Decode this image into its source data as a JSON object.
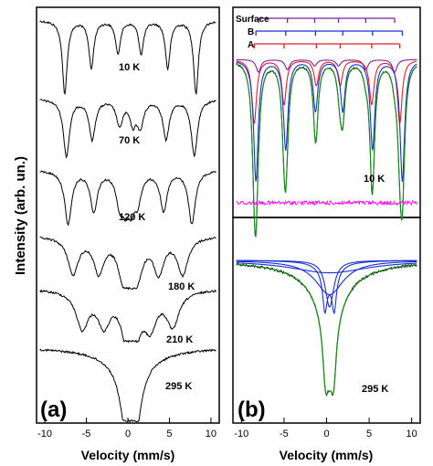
{
  "figure": {
    "ylabel": "Intensity (arb. un.)",
    "xlabel_a": "Velocity (mm/s)",
    "xlabel_b": "Velocity (mm/s)"
  },
  "chart_data": [
    {
      "panel": "(a)",
      "type": "line",
      "xlabel": "Velocity (mm/s)",
      "ylabel": "Intensity (arb. un.)",
      "xlim": [
        -11,
        11
      ],
      "xticks": [
        -10,
        -5,
        0,
        5,
        10
      ],
      "xtick_labels": [
        "-10",
        "-5",
        "0",
        "5",
        "10"
      ],
      "series": [
        {
          "name": "10 K",
          "lines": [
            [
              -7.6,
              1.0
            ],
            [
              -4.4,
              0.65
            ],
            [
              -1.2,
              0.45
            ],
            [
              1.6,
              0.45
            ],
            [
              4.8,
              0.65
            ],
            [
              8.2,
              1.0
            ]
          ]
        },
        {
          "name": "70 K",
          "lines": [
            [
              -7.4,
              1.0
            ],
            [
              -4.3,
              0.7
            ],
            [
              -1.0,
              0.45
            ],
            [
              0.6,
              0.4
            ],
            [
              1.5,
              0.45
            ],
            [
              4.6,
              0.7
            ],
            [
              8.0,
              1.0
            ]
          ]
        },
        {
          "name": "120 K",
          "lines": [
            [
              -7.2,
              1.0
            ],
            [
              -4.1,
              0.75
            ],
            [
              -1.0,
              0.55
            ],
            [
              -0.3,
              0.5
            ],
            [
              0.4,
              0.55
            ],
            [
              1.2,
              0.5
            ],
            [
              4.3,
              0.75
            ],
            [
              7.7,
              1.0
            ]
          ]
        },
        {
          "name": "180 K",
          "lines": [
            [
              -6.6,
              0.8
            ],
            [
              -3.5,
              0.75
            ],
            [
              -0.6,
              0.65
            ],
            [
              0.3,
              0.7
            ],
            [
              1.2,
              0.6
            ],
            [
              3.7,
              0.75
            ],
            [
              6.6,
              0.8
            ]
          ]
        },
        {
          "name": "210 K",
          "lines": [
            [
              -5.5,
              0.8
            ],
            [
              -2.9,
              0.7
            ],
            [
              0.0,
              0.85
            ],
            [
              0.7,
              0.85
            ],
            [
              2.7,
              0.7
            ],
            [
              5.4,
              0.75
            ]
          ]
        },
        {
          "name": "295 K",
          "lines": [
            [
              0.0,
              1.0
            ],
            [
              0.7,
              1.0
            ]
          ]
        }
      ],
      "annotations": [
        "10 K",
        "70 K",
        "120 K",
        "180 K",
        "210 K",
        "295 K",
        "(a)"
      ]
    },
    {
      "panel": "(b)",
      "type": "line",
      "xlabel": "Velocity (mm/s)",
      "xlim": [
        -11,
        11
      ],
      "xticks": [
        -10,
        -5,
        0,
        5,
        10
      ],
      "xtick_labels": [
        "-10",
        "-5",
        "0",
        "5",
        "10"
      ],
      "subplots": [
        {
          "temperature": "10 K",
          "stick_legend": [
            "Surface",
            "B",
            "A"
          ],
          "stick_colors": [
            "#7a1fa0",
            "#1a2fd0",
            "#e02020"
          ],
          "sticks": {
            "Surface": [
              -8.0,
              -4.6,
              -1.4,
              1.4,
              4.6,
              8.0
            ],
            "B": [
              -8.3,
              -4.8,
              -1.3,
              1.9,
              5.4,
              8.9
            ],
            "A": [
              -8.5,
              -5.0,
              -1.2,
              1.6,
              5.3,
              8.6
            ]
          },
          "components": [
            {
              "name": "B",
              "color": "#1a2fd0",
              "lines": [
                [
                  -8.3,
                  0.95
                ],
                [
                  -4.8,
                  0.7
                ],
                [
                  -1.3,
                  0.4
                ],
                [
                  1.9,
                  0.4
                ],
                [
                  5.4,
                  0.7
                ],
                [
                  8.9,
                  0.95
                ]
              ]
            },
            {
              "name": "A",
              "color": "#e02020",
              "lines": [
                [
                  -8.5,
                  0.5
                ],
                [
                  -5.0,
                  0.35
                ],
                [
                  -1.2,
                  0.2
                ],
                [
                  1.6,
                  0.2
                ],
                [
                  5.3,
                  0.35
                ],
                [
                  8.6,
                  0.5
                ]
              ]
            },
            {
              "name": "Surface",
              "color": "#7a1fa0",
              "lines": [
                [
                  -8.0,
                  0.1
                ],
                [
                  -4.6,
                  0.08
                ],
                [
                  -1.4,
                  0.05
                ],
                [
                  1.4,
                  0.05
                ],
                [
                  4.6,
                  0.08
                ],
                [
                  8.0,
                  0.1
                ]
              ]
            }
          ],
          "fit_color": "#1a8a1a",
          "residual_color": "#ff00ff"
        },
        {
          "temperature": "295 K",
          "component_color": "#1a2fd0",
          "fit_color": "#1a8a1a",
          "lines": [
            [
              0.0,
              1.0
            ],
            [
              0.7,
              1.0
            ]
          ]
        }
      ],
      "annotations": [
        "Surface",
        "B",
        "A",
        "10 K",
        "295 K",
        "(b)"
      ]
    }
  ]
}
